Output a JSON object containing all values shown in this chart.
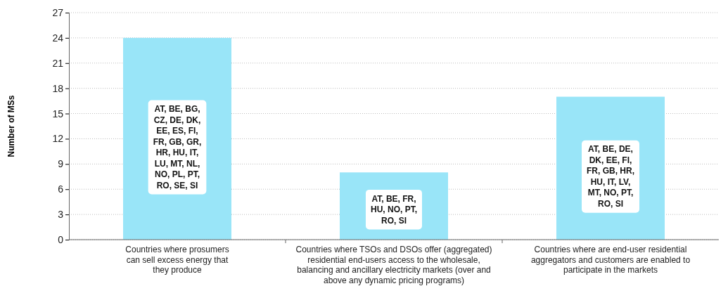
{
  "chart_data": {
    "type": "bar",
    "ylabel": "Number of MSs",
    "categories": [
      "Countries where prosumers can sell excess energy that they produce",
      "Countries where TSOs and DSOs offer (aggregated) residential end-users access to the wholesale, balancing and ancillary electricity markets (over and above any dynamic pricing programs)",
      "Countries where are end-user residential aggregators and customers are enabled to participate in the markets"
    ],
    "values": [
      24,
      8,
      17
    ],
    "color": "#99e5f8",
    "ylim": [
      0,
      27
    ],
    "yticks": [
      0,
      3,
      6,
      9,
      12,
      15,
      18,
      21,
      24,
      27
    ],
    "grid": "y",
    "annotations": [
      "AT, BE, BG, CZ, DE, DK, EE, ES, FI, FR, GB, GR, HR, HU, IT, LU, MT, NL, NO, PL, PT, RO, SE, SI",
      "AT, BE, FR, HU, NO, PT, RO, SI",
      "AT, BE, DE, DK, EE, FI, FR, GB, HR, HU, IT, LV, MT, NO, PT, RO, SI"
    ]
  }
}
